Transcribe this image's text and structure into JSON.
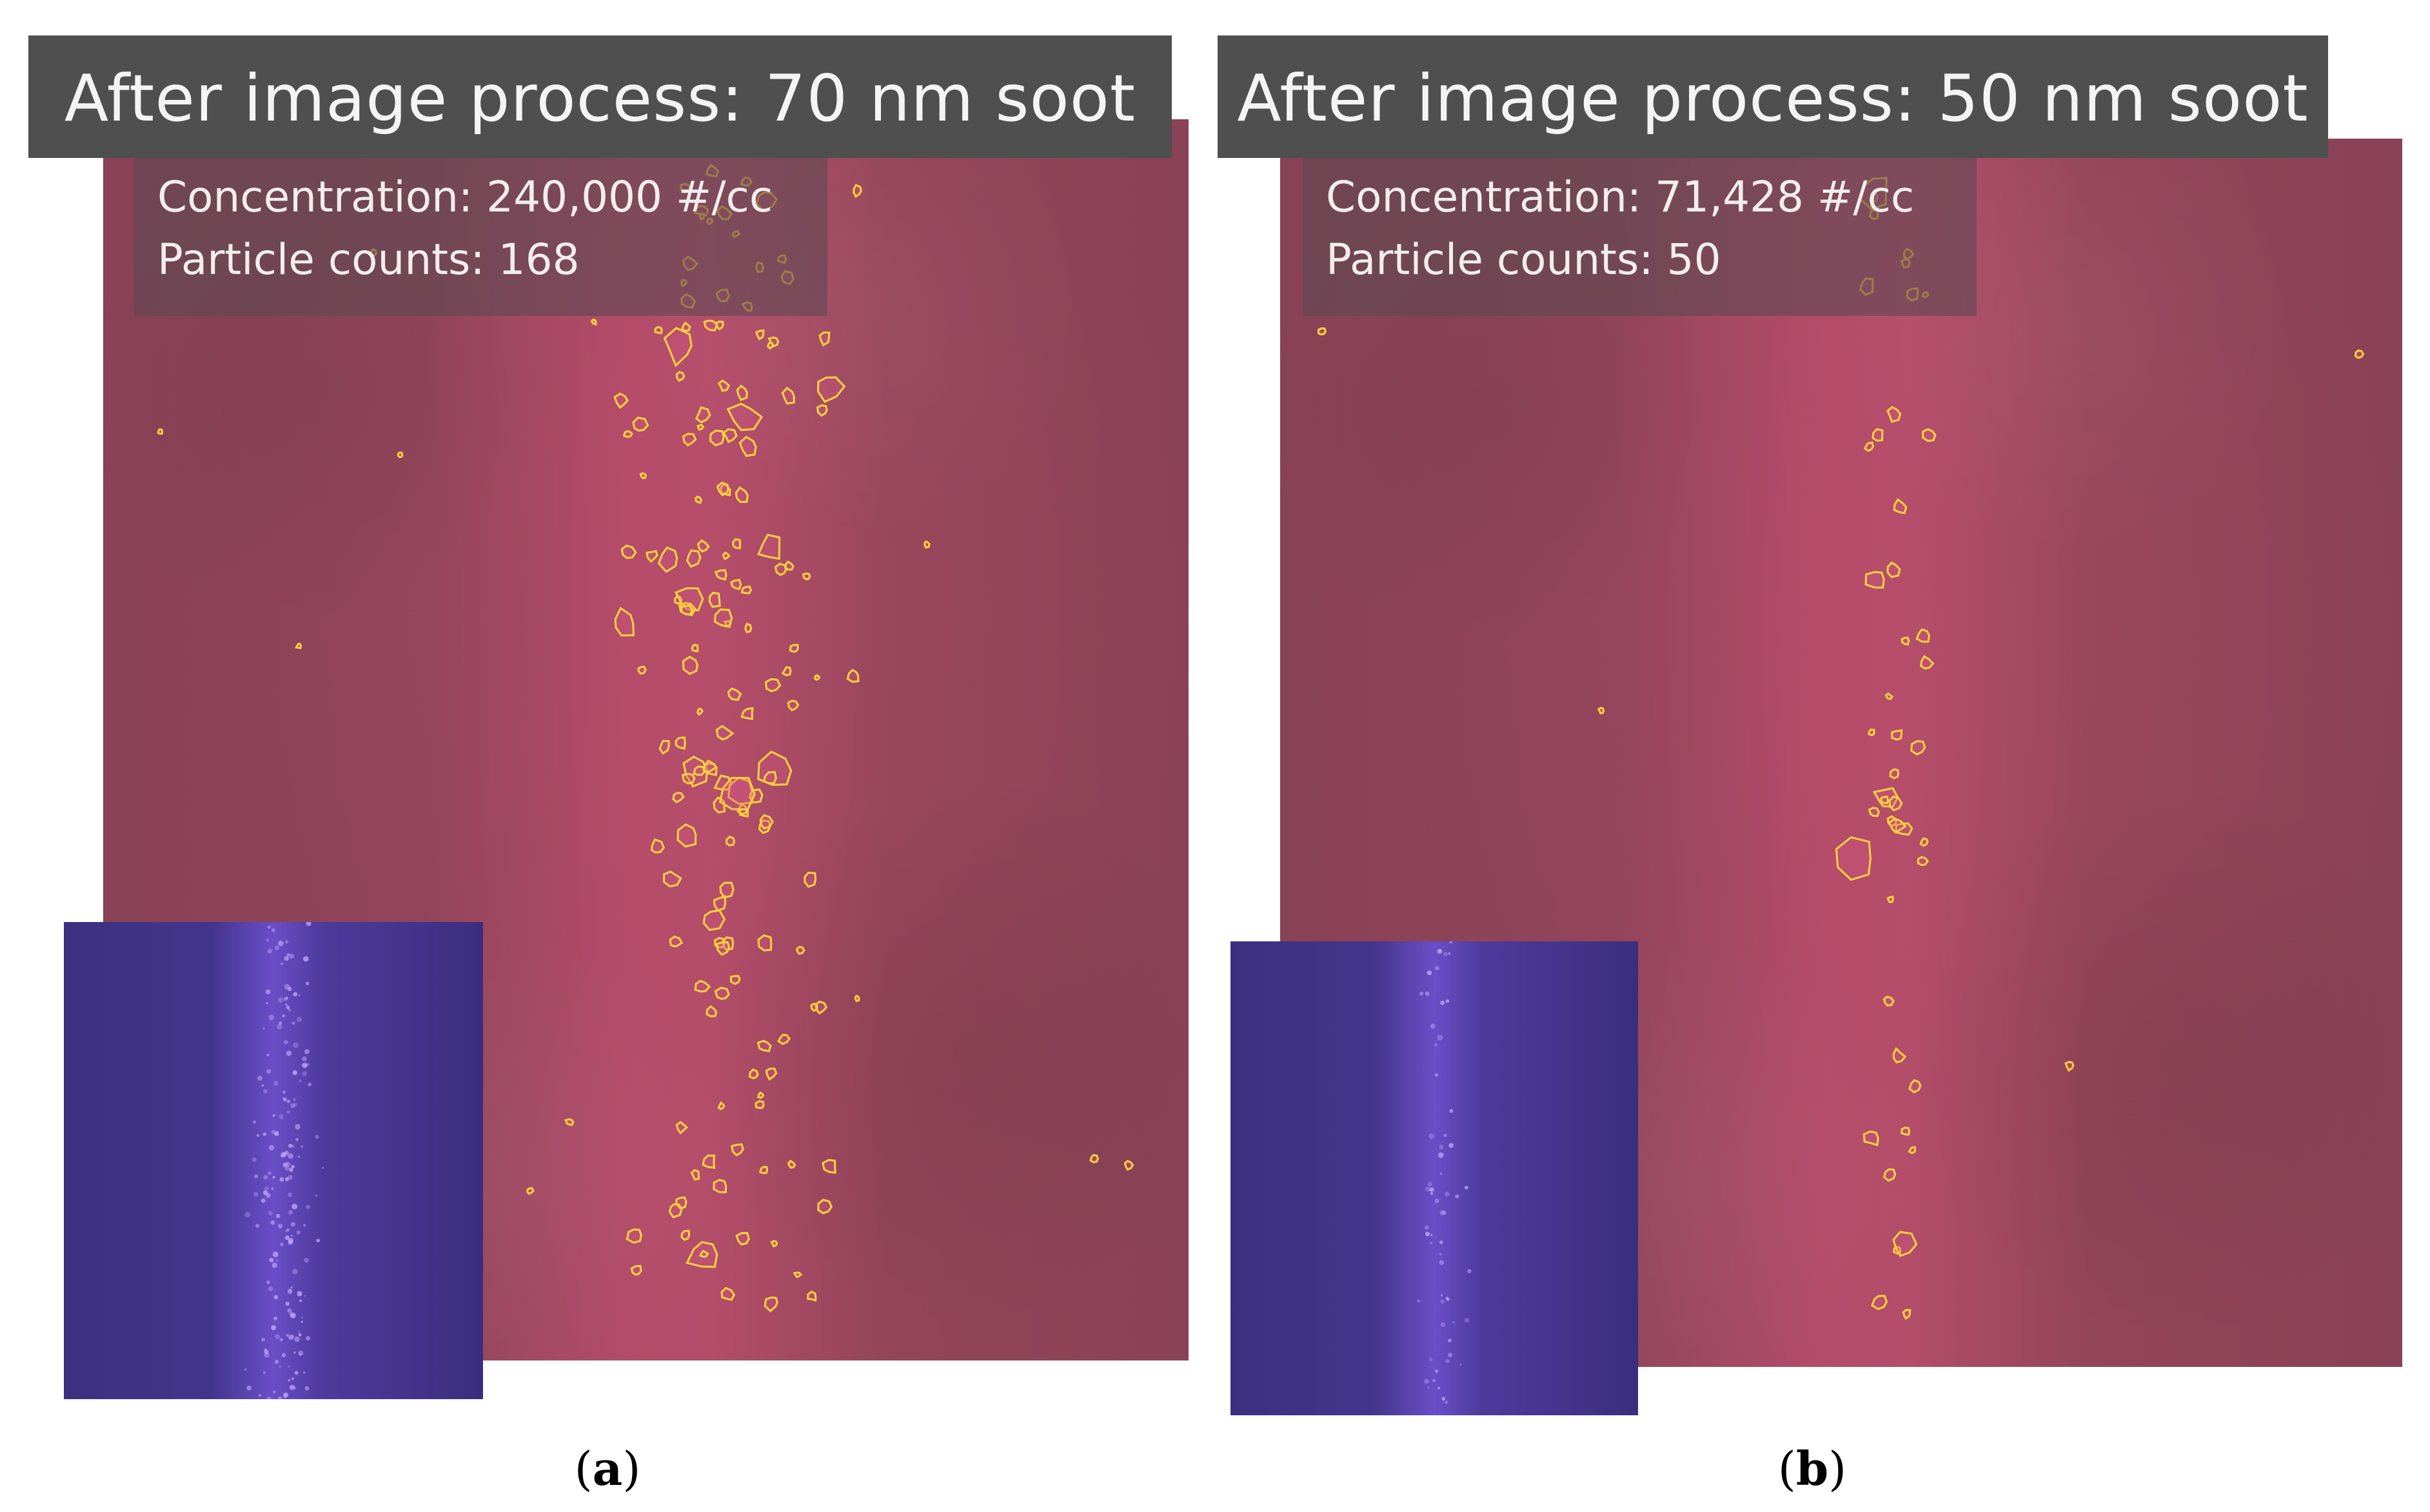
{
  "panels": [
    {
      "id": "a",
      "title": "After image process: 70 nm soot",
      "concentration_text": "Concentration: 240,000 #/cc",
      "particle_counts_text": "Particle counts: 168",
      "caption_open": "(",
      "caption_letter": "a",
      "caption_close": ")"
    },
    {
      "id": "b",
      "title": "After image process: 50 nm soot",
      "concentration_text": "Concentration: 71,428 #/cc",
      "particle_counts_text": "Particle counts: 50",
      "caption_open": "(",
      "caption_letter": "b",
      "caption_close": ")"
    }
  ],
  "colors": {
    "title_bar": "#4f4f4f",
    "particle_outline": "#ffd23a",
    "main_background": "#9a4660",
    "inset_background": "#43358c"
  }
}
